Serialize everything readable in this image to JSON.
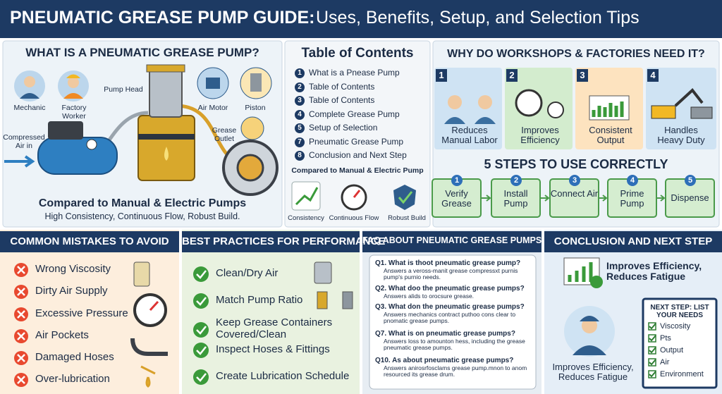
{
  "header": {
    "title_bold": "PNEUMATIC GREASE PUMP GUIDE:",
    "title_rest": "Uses, Benefits, Setup, and Selection Tips"
  },
  "what_is": {
    "title": "WHAT IS A PNEUMATIC GREASE PUMP?",
    "labels": [
      "Mechanic",
      "Factory Worker",
      "Pump Head",
      "Air Motor",
      "Piston",
      "Compressed Air in",
      "Grease Outlet"
    ],
    "comparison_title": "Compared to Manual & Electric Pumps",
    "comparison_text": "High Consistency, Continuous Flow, Robust Build."
  },
  "toc": {
    "title": "Table of Contents",
    "items": [
      {
        "number": "1",
        "text": "What is a Pnease Pump"
      },
      {
        "number": "2",
        "text": "Table of Contents"
      },
      {
        "number": "3",
        "text": "Table of Contents"
      },
      {
        "number": "4",
        "text": "Complete Grease Pump"
      },
      {
        "number": "5",
        "text": "Setup of Selection"
      },
      {
        "number": "7",
        "text": "Pneumatic Grease Pump"
      },
      {
        "number": "8",
        "text": "Conclusion and Next Step"
      }
    ],
    "compare_title": "Compared to Manual & Electric Pump",
    "compare_items": [
      "Consistency",
      "Continuous Flow",
      "Robust Build"
    ]
  },
  "why": {
    "title": "WHY DO WORKSHOPS & FACTORIES NEED IT?",
    "cards": [
      {
        "number": "1",
        "label": "Reduces Manual Labor"
      },
      {
        "number": "2",
        "label": "Improves Efficiency"
      },
      {
        "number": "3",
        "label": "Consistent Output"
      },
      {
        "number": "4",
        "label": "Handles Heavy Duty"
      }
    ]
  },
  "steps": {
    "title": "5 STEPS TO USE CORRECTLY",
    "items": [
      {
        "number": "1",
        "label": "Verify Grease"
      },
      {
        "number": "2",
        "label": "Install Pump"
      },
      {
        "number": "3",
        "label": "Connect Air"
      },
      {
        "number": "4",
        "label": "Prime Pump"
      },
      {
        "number": "5",
        "label": "Dispense"
      }
    ]
  },
  "mistakes": {
    "title": "COMMON MISTAKES TO AVOID",
    "items": [
      "Wrong Viscosity",
      "Dirty Air Supply",
      "Excessive Pressure",
      "Air Pockets",
      "Damaged Hoses",
      "Over-lubrication"
    ]
  },
  "best_practices": {
    "title": "BEST PRACTICES FOR PERFORMANCE",
    "items": [
      "Clean/Dry Air",
      "Match Pump Ratio",
      "Keep Grease Containers Covered/Clean",
      "Inspect Hoses & Fittings",
      "Create Lubrication Schedule"
    ]
  },
  "faq": {
    "title": "FAQ ABOUT PNEUMATIC GREASE PUMPS",
    "items": [
      {
        "q": "Q1. What is thoot pneumatic grease pump?",
        "a": "Answers a veross-manit grease compressxt purnis pump's purnio needs."
      },
      {
        "q": "Q2. What doo the pneumatic grease pumps?",
        "a": "Answers alids to orocsure grease."
      },
      {
        "q": "Q3. What don the pneumatic grease pumps?",
        "a": "Answers mechanics contract puthoo cons clear to pnomatic grease pumps."
      },
      {
        "q": "Q7. What is on pneumatic grease pumps?",
        "a": "Answers loss to amounton hess, including the grease pneumatic grease pumps."
      },
      {
        "q": "Q10. As about pneumatic grease pumps?",
        "a": "Answers anirosrfosclams grease pump.mnon to anom resourced its grease drum."
      }
    ]
  },
  "conclusion": {
    "title": "CONCLUSION AND NEXT STEP",
    "benefit": "Improves Efficiency, Reduces Fatigue",
    "caption": "Improves Efficiency, Reduces Fatigue",
    "next_step": {
      "title": "NEXT STEP: LIST YOUR NEEDS",
      "items": [
        "Viscosity",
        "Pts",
        "Output",
        "Air",
        "Environment"
      ]
    }
  }
}
